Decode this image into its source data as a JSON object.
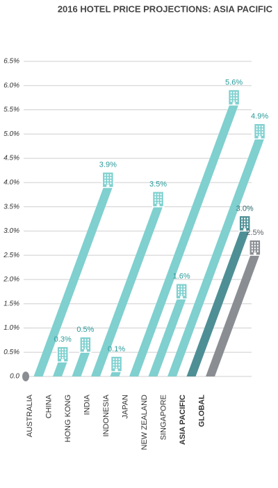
{
  "chart_data": {
    "type": "slanted-bar",
    "title": "2016 HOTEL PRICE PROJECTIONS: ASIA PACIFIC",
    "categories": [
      "AUSTRALIA",
      "CHINA",
      "HONG KONG",
      "INDIA",
      "INDONESIA",
      "JAPAN",
      "NEW ZEALAND",
      "SINGAPORE",
      "ASIA PACIFIC",
      "GLOBAL"
    ],
    "values": [
      3.9,
      0.3,
      0.5,
      3.5,
      0.1,
      5.6,
      1.6,
      4.9,
      3.0,
      2.5
    ],
    "value_labels": [
      "3.9%",
      "0.3%",
      "0.5%",
      "3.5%",
      "0.1%",
      "5.6%",
      "1.6%",
      "4.9%",
      "3.0%",
      "2.5%"
    ],
    "colors": [
      "#7fd0cf",
      "#7fd0cf",
      "#7fd0cf",
      "#7fd0cf",
      "#7fd0cf",
      "#7fd0cf",
      "#7fd0cf",
      "#7fd0cf",
      "#4e8f95",
      "#8a8e93"
    ],
    "label_colors": [
      "#2a9a9a",
      "#2a9a9a",
      "#2a9a9a",
      "#2a9a9a",
      "#2a9a9a",
      "#2a9a9a",
      "#2a9a9a",
      "#2a9a9a",
      "#2f6f75",
      "#5f6368"
    ],
    "ylim": [
      0,
      6.5
    ],
    "yticks": [
      {
        "value": 0,
        "label": "0.0"
      },
      {
        "value": 0.5,
        "label": "0.5%"
      },
      {
        "value": 1,
        "label": "1.0%"
      },
      {
        "value": 1.5,
        "label": "1.5%"
      },
      {
        "value": 2,
        "label": "2.0%"
      },
      {
        "value": 2.5,
        "label": "2.5%"
      },
      {
        "value": 3,
        "label": "3.0%"
      },
      {
        "value": 3.5,
        "label": "3.5%"
      },
      {
        "value": 4,
        "label": "4.0%"
      },
      {
        "value": 4.5,
        "label": "4.5%"
      },
      {
        "value": 5,
        "label": "5.0%"
      },
      {
        "value": 5.5,
        "label": "5.5%"
      },
      {
        "value": 6,
        "label": "6.0%"
      },
      {
        "value": 6.5,
        "label": "6.5%"
      }
    ],
    "grid": true
  }
}
